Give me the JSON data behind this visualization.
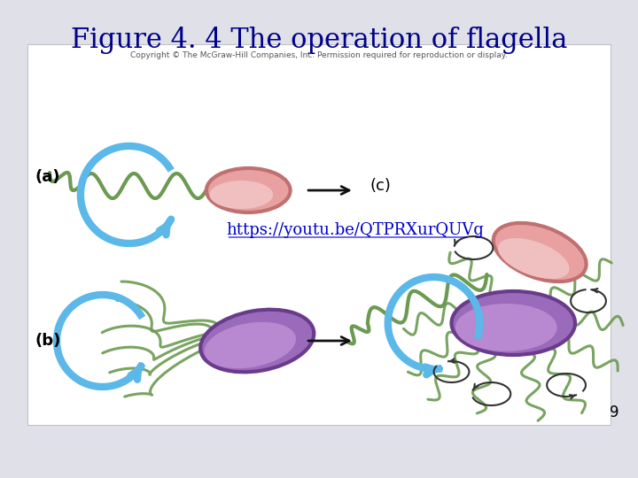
{
  "title": "Figure 4. 4 The operation of flagella",
  "title_color": "#00008B",
  "title_fontsize": 22,
  "bg_color": "#E0E0E8",
  "inner_bg": "#FFFFFF",
  "link_text": "https://youtu.be/QTPRXurQUVg",
  "link_color": "#0000CC",
  "link_fontsize": 13,
  "label_fontsize": 13,
  "page_number": "9",
  "page_num_fontsize": 12,
  "copyright_text": "Copyright © The McGraw-Hill Companies, Inc. Permission required for reproduction or display.",
  "copyright_fontsize": 6.5,
  "blue_arrow_color": "#5BB8E8",
  "flagellum_color": "#6B9A50",
  "pink_body": "#E8A0A0",
  "pink_edge": "#C07070",
  "purple_body": "#9B6BBB",
  "purple_edge": "#6B3B8B",
  "black_arrow": "#111111",
  "small_arrow_color": "#333333"
}
